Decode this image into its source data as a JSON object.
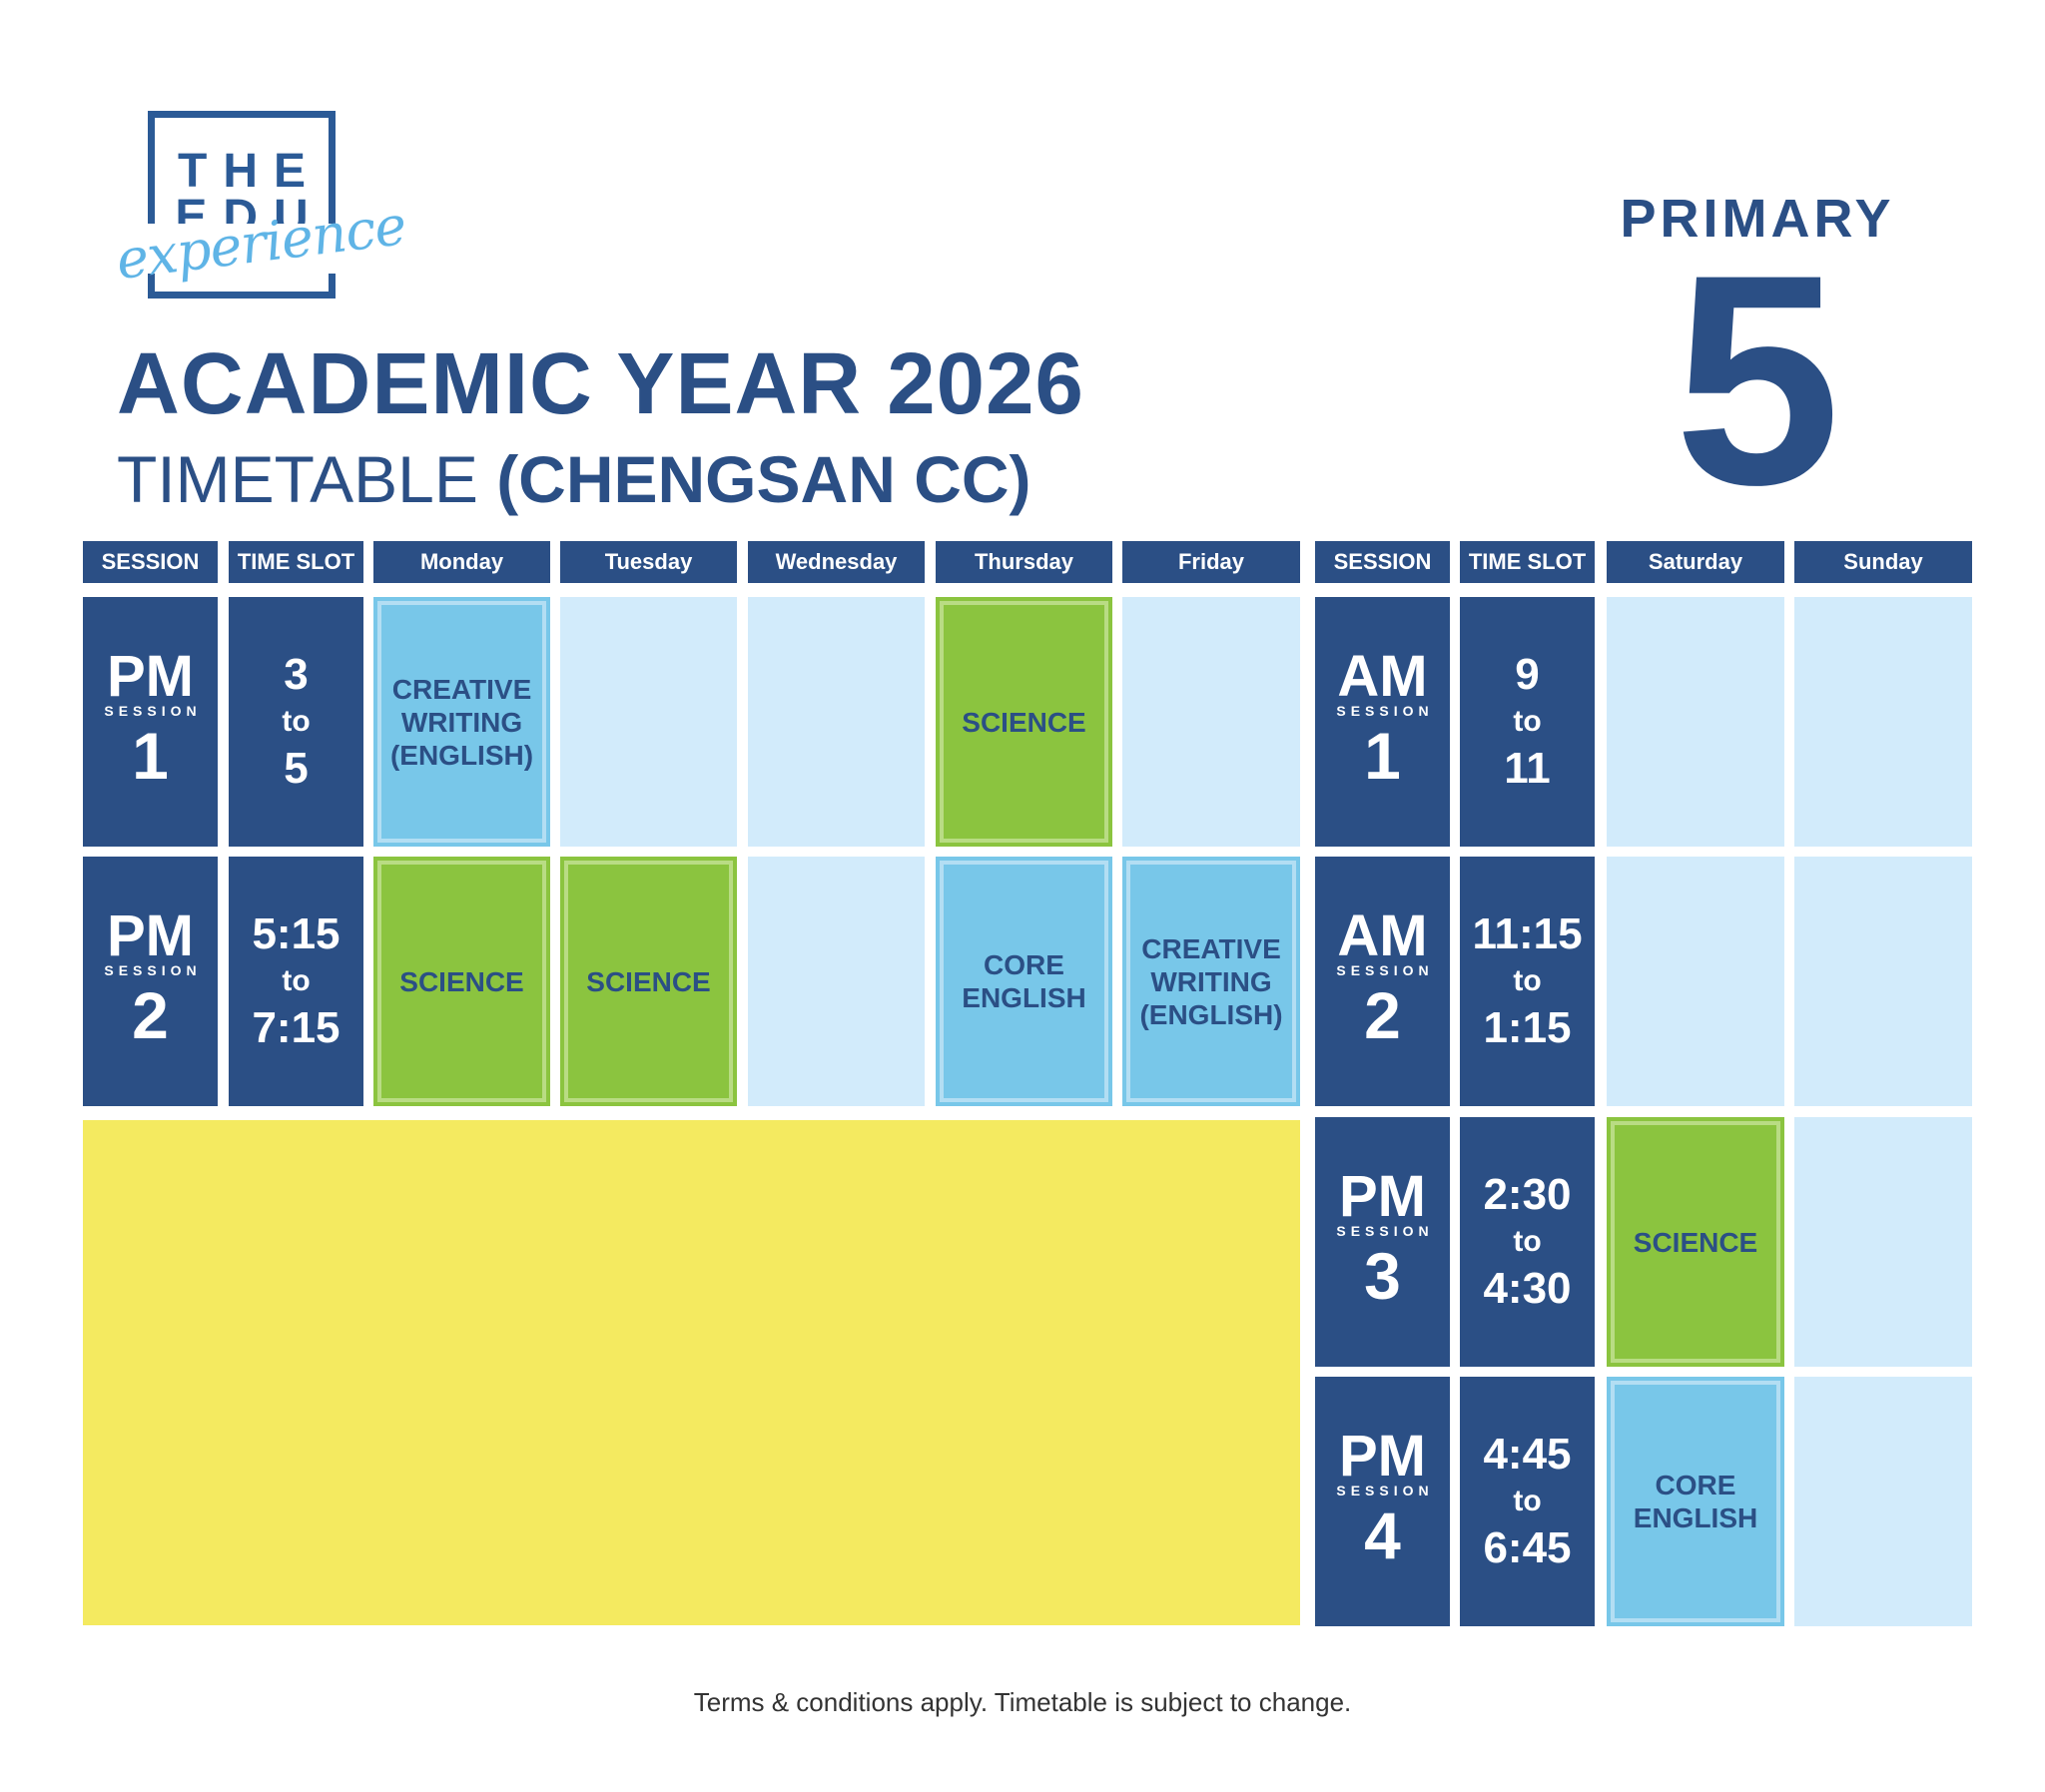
{
  "brand": {
    "logo_line1": "THE",
    "logo_line2": "EDU",
    "logo_script": "experience"
  },
  "title": {
    "line1": "ACADEMIC YEAR 2026",
    "line2_prefix": "TIMETABLE ",
    "line2_bold": "(CHENGSAN CC)"
  },
  "level": {
    "label": "PRIMARY",
    "number": "5"
  },
  "weekday_table": {
    "headers": [
      "SESSION",
      "TIME SLOT",
      "Monday",
      "Tuesday",
      "Wednesday",
      "Thursday",
      "Friday"
    ],
    "rows": [
      {
        "session_type": "PM",
        "session_label": "SESSION",
        "session_number": "1",
        "time_start": "3",
        "time_to": "to",
        "time_end": "5",
        "classes": [
          "CREATIVE WRITING (ENGLISH)",
          "",
          "",
          "SCIENCE",
          ""
        ]
      },
      {
        "session_type": "PM",
        "session_label": "SESSION",
        "session_number": "2",
        "time_start": "5:15",
        "time_to": "to",
        "time_end": "7:15",
        "classes": [
          "SCIENCE",
          "SCIENCE",
          "",
          "CORE ENGLISH",
          "CREATIVE WRITING (ENGLISH)"
        ]
      }
    ]
  },
  "weekend_table": {
    "headers": [
      "SESSION",
      "TIME SLOT",
      "Saturday",
      "Sunday"
    ],
    "rows": [
      {
        "session_type": "AM",
        "session_label": "SESSION",
        "session_number": "1",
        "time_start": "9",
        "time_to": "to",
        "time_end": "11",
        "classes": [
          "",
          ""
        ]
      },
      {
        "session_type": "AM",
        "session_label": "SESSION",
        "session_number": "2",
        "time_start": "11:15",
        "time_to": "to",
        "time_end": "1:15",
        "classes": [
          "",
          ""
        ]
      },
      {
        "session_type": "PM",
        "session_label": "SESSION",
        "session_number": "3",
        "time_start": "2:30",
        "time_to": "to",
        "time_end": "4:30",
        "classes": [
          "SCIENCE",
          ""
        ]
      },
      {
        "session_type": "PM",
        "session_label": "SESSION",
        "session_number": "4",
        "time_start": "4:45",
        "time_to": "to",
        "time_end": "6:45",
        "classes": [
          "CORE ENGLISH",
          ""
        ]
      }
    ]
  },
  "subject_colors": {
    "SCIENCE": "#8bc43f",
    "CORE ENGLISH": "#78c7e9",
    "CREATIVE WRITING (ENGLISH)": "#78c7e9"
  },
  "colors": {
    "navy": "#2b4f85",
    "empty_cell": "#d2ebfb",
    "highlight_block": "#f4ea60"
  },
  "footer": {
    "note": "Terms & conditions apply. Timetable is subject to change."
  }
}
